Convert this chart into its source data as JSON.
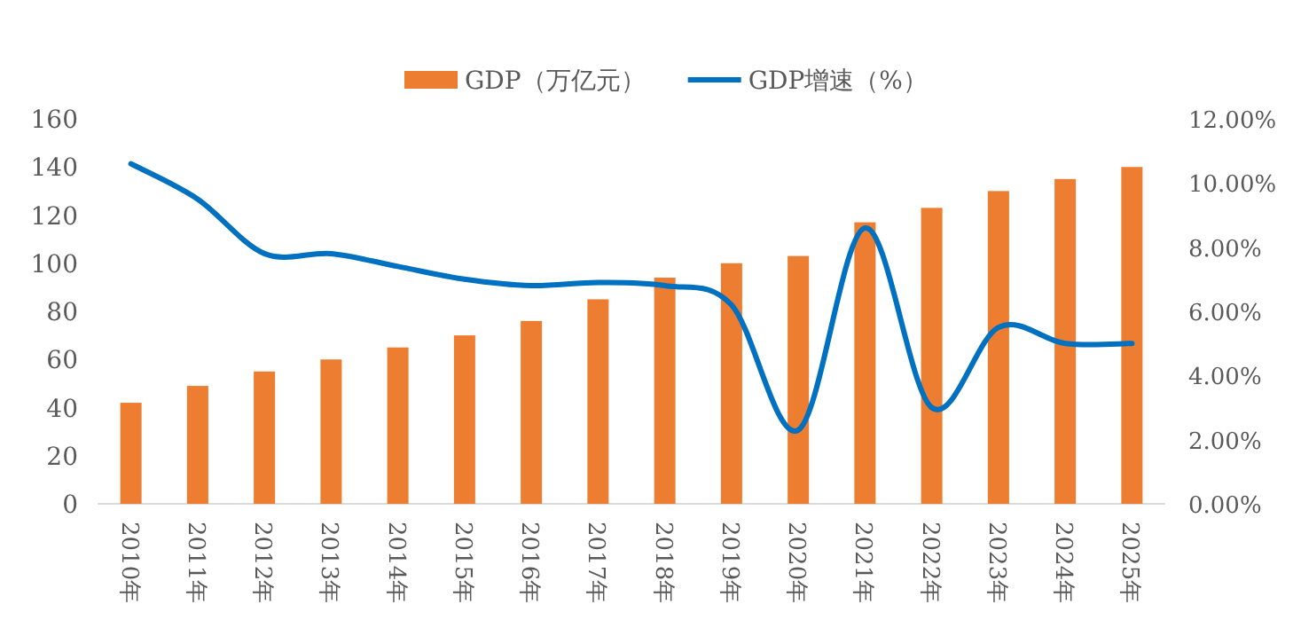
{
  "chart_data": {
    "type": "bar",
    "categories": [
      "2010年",
      "2011年",
      "2012年",
      "2013年",
      "2014年",
      "2015年",
      "2016年",
      "2017年",
      "2018年",
      "2019年",
      "2020年",
      "2021年",
      "2022年",
      "2023年",
      "2024年",
      "2025年"
    ],
    "series": [
      {
        "name": "GDP（万亿元）",
        "color": "#ed7d31",
        "values": [
          42,
          49,
          55,
          60,
          65,
          70,
          76,
          85,
          94,
          100,
          103,
          117,
          123,
          130,
          135,
          140
        ]
      },
      {
        "name": "GDP增速（%）",
        "type": "line",
        "axis": "y2",
        "color": "#0070c0",
        "values": [
          10.6,
          9.5,
          7.8,
          7.8,
          7.4,
          7.0,
          6.8,
          6.9,
          6.8,
          6.2,
          2.3,
          8.6,
          3.0,
          5.5,
          5.0,
          5.0
        ]
      }
    ],
    "ylim": [
      0,
      160
    ],
    "yticks": [
      0,
      20,
      40,
      60,
      80,
      100,
      120,
      140,
      160
    ],
    "y2lim": [
      0,
      12
    ],
    "y2ticks": [
      {
        "value": 0,
        "label": "0.00%"
      },
      {
        "value": 2,
        "label": "2.00%"
      },
      {
        "value": 4,
        "label": "4.00%"
      },
      {
        "value": 6,
        "label": "6.00%"
      },
      {
        "value": 8,
        "label": "8.00%"
      },
      {
        "value": 10,
        "label": "10.00%"
      },
      {
        "value": 12,
        "label": "12.00%"
      }
    ],
    "legend": "top",
    "grid": false
  }
}
